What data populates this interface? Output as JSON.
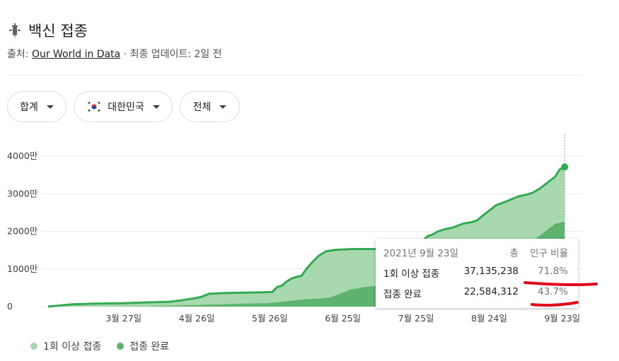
{
  "header": {
    "icon": "syringe-icon",
    "title": "백신 접종"
  },
  "source": {
    "prefix": "출처: ",
    "link": "Our World in Data",
    "suffix": " · 최종 업데이트: 2일 전"
  },
  "filters": [
    {
      "label": "합계"
    },
    {
      "label": "대한민국",
      "icon": "korea-flag-icon"
    },
    {
      "label": "전체"
    }
  ],
  "colors": {
    "first_dose": "#a8d8ad",
    "full": "#5fb36e",
    "line": "#34a853",
    "grid": "#e8eaed"
  },
  "chart_data": {
    "type": "area",
    "yticks": [
      "0",
      "1000만",
      "2000만",
      "3000만",
      "4000만"
    ],
    "ylim": [
      0,
      45000000
    ],
    "xticks": [
      {
        "label": "3월 27일",
        "day": 31
      },
      {
        "label": "4월 26일",
        "day": 61
      },
      {
        "label": "5월 26일",
        "day": 91
      },
      {
        "label": "6월 25일",
        "day": 121
      },
      {
        "label": "7월 25일",
        "day": 151
      },
      {
        "label": "8월 24일",
        "day": 181
      },
      {
        "label": "9월 23일",
        "day": 211
      }
    ],
    "x_day_range": [
      0,
      216
    ],
    "series": [
      {
        "name": "1회 이상 접종",
        "points": [
          [
            0,
            0
          ],
          [
            5,
            300000
          ],
          [
            10,
            600000
          ],
          [
            20,
            800000
          ],
          [
            30,
            900000
          ],
          [
            40,
            1100000
          ],
          [
            50,
            1300000
          ],
          [
            55,
            1700000
          ],
          [
            60,
            2200000
          ],
          [
            63,
            2600000
          ],
          [
            66,
            3400000
          ],
          [
            72,
            3600000
          ],
          [
            80,
            3700000
          ],
          [
            88,
            3800000
          ],
          [
            92,
            3900000
          ],
          [
            94,
            5200000
          ],
          [
            96,
            5600000
          ],
          [
            98,
            6700000
          ],
          [
            100,
            7500000
          ],
          [
            102,
            7900000
          ],
          [
            104,
            8200000
          ],
          [
            106,
            10000000
          ],
          [
            108,
            11500000
          ],
          [
            111,
            13500000
          ],
          [
            114,
            14700000
          ],
          [
            118,
            15100000
          ],
          [
            125,
            15300000
          ],
          [
            140,
            15300000
          ],
          [
            148,
            15300000
          ],
          [
            150,
            15500000
          ],
          [
            152,
            16500000
          ],
          [
            154,
            17700000
          ],
          [
            156,
            18800000
          ],
          [
            158,
            19200000
          ],
          [
            160,
            20000000
          ],
          [
            163,
            20600000
          ],
          [
            166,
            21000000
          ],
          [
            170,
            22000000
          ],
          [
            174,
            22500000
          ],
          [
            176,
            22900000
          ],
          [
            178,
            24000000
          ],
          [
            180,
            25000000
          ],
          [
            182,
            26000000
          ],
          [
            184,
            27000000
          ],
          [
            187,
            27700000
          ],
          [
            190,
            28500000
          ],
          [
            193,
            29300000
          ],
          [
            196,
            29700000
          ],
          [
            199,
            30300000
          ],
          [
            202,
            31500000
          ],
          [
            205,
            33000000
          ],
          [
            208,
            34500000
          ],
          [
            210,
            36500000
          ],
          [
            212,
            37135238
          ]
        ]
      },
      {
        "name": "접종 완료",
        "points": [
          [
            0,
            0
          ],
          [
            20,
            0
          ],
          [
            40,
            100000
          ],
          [
            60,
            400000
          ],
          [
            70,
            600000
          ],
          [
            80,
            800000
          ],
          [
            90,
            900000
          ],
          [
            96,
            1300000
          ],
          [
            100,
            1600000
          ],
          [
            106,
            2000000
          ],
          [
            110,
            2100000
          ],
          [
            113,
            2200000
          ],
          [
            116,
            2500000
          ],
          [
            120,
            3500000
          ],
          [
            124,
            4500000
          ],
          [
            130,
            5200000
          ],
          [
            136,
            5600000
          ],
          [
            140,
            5800000
          ],
          [
            150,
            6000000
          ],
          [
            160,
            7000000
          ],
          [
            170,
            8500000
          ],
          [
            180,
            11000000
          ],
          [
            186,
            13000000
          ],
          [
            192,
            14500000
          ],
          [
            196,
            16000000
          ],
          [
            200,
            18000000
          ],
          [
            204,
            20000000
          ],
          [
            208,
            22000000
          ],
          [
            212,
            22584312
          ]
        ]
      }
    ]
  },
  "tooltip": {
    "date": "2021년 9월 23일",
    "col_total": "총",
    "col_ratio": "인구 비율",
    "rows": [
      {
        "label": "1회 이상 접종",
        "value": "37,135,238",
        "pct": "71.8%"
      },
      {
        "label": "접종 완료",
        "value": "22,584,312",
        "pct": "43.7%"
      }
    ]
  },
  "legend": [
    {
      "label": "1회 이상 접종",
      "color": "#a8d8ad"
    },
    {
      "label": "접종 완료",
      "color": "#5fb36e"
    }
  ]
}
